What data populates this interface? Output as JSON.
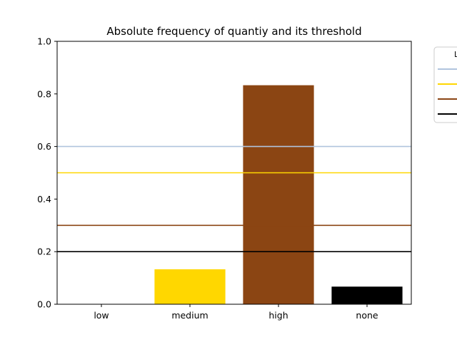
{
  "chart_data": {
    "type": "bar",
    "title": "Absolute frequency of quantiy and its threshold",
    "xlabel": "",
    "ylabel": "",
    "categories": [
      "low",
      "medium",
      "high",
      "none"
    ],
    "values": [
      0.0,
      0.133,
      0.833,
      0.067
    ],
    "bar_colors": [
      "#ffffff",
      "#ffd700",
      "#8b4513",
      "#000000"
    ],
    "ylim": [
      0,
      1.0
    ],
    "yticks": [
      "0.0",
      "0.2",
      "0.4",
      "0.6",
      "0.8",
      "1.0"
    ],
    "threshold_lines": [
      {
        "value": 0.6,
        "color": "#b0c4de"
      },
      {
        "value": 0.5,
        "color": "#ffd700"
      },
      {
        "value": 0.3,
        "color": "#8b4513"
      },
      {
        "value": 0.2,
        "color": "#000000"
      }
    ],
    "legend": {
      "title": "L",
      "placement": "outside-top-right"
    },
    "grid": false
  }
}
